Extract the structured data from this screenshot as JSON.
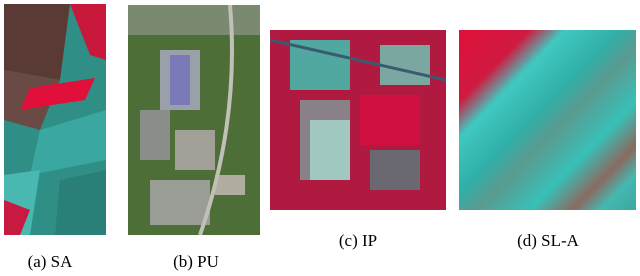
{
  "figures": [
    {
      "caption": "(a) SA"
    },
    {
      "caption": "(b) PU"
    },
    {
      "caption": "(c) IP"
    },
    {
      "caption": "(d) SL-A"
    }
  ]
}
